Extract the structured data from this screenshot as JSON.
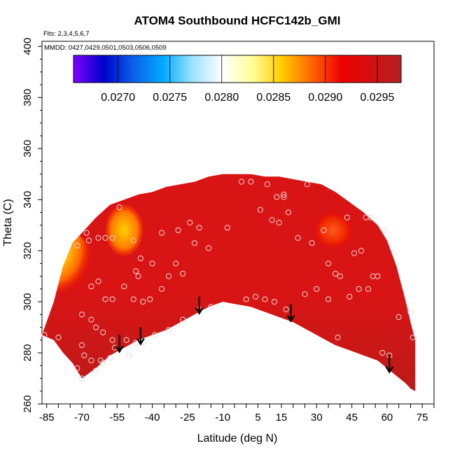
{
  "chart_data": {
    "type": "heatmap",
    "title": "ATOM4 Southbound HCFC142b_GMI",
    "flights_note": "Flts: 2,3,4,5,6,7",
    "dates_note": "MMDD: 0427,0429,0501,0503,0506,0509",
    "xlabel": "Latitude (deg N)",
    "ylabel": "Theta (C)",
    "xlim": [
      -87,
      80
    ],
    "ylim": [
      260,
      402
    ],
    "x_ticks": [
      -85,
      -70,
      -55,
      -40,
      -25,
      -10,
      5,
      15,
      30,
      45,
      60,
      75
    ],
    "y_ticks": [
      260,
      280,
      300,
      320,
      340,
      360,
      380,
      400
    ],
    "colorbar": {
      "min": 0.02657,
      "max": 0.02973,
      "ticks": [
        0.027,
        0.0275,
        0.028,
        0.0285,
        0.029,
        0.0295
      ],
      "tick_labels": [
        "0.0270",
        "0.0275",
        "0.0280",
        "0.0285",
        "0.0290",
        "0.0295"
      ],
      "colors": [
        "#7f00ff",
        "#0000cc",
        "#0b5fe8",
        "#00aaff",
        "#9ee3ff",
        "#ffffff",
        "#ffff99",
        "#ffcc00",
        "#ff6600",
        "#ee0000",
        "#d40f0f",
        "#b22222"
      ]
    },
    "envelope": {
      "lat": [
        -87,
        -82,
        -78,
        -74,
        -70,
        -64,
        -58,
        -52,
        -46,
        -40,
        -34,
        -28,
        -22,
        -16,
        -10,
        -4,
        2,
        8,
        14,
        20,
        26,
        32,
        38,
        44,
        50,
        56,
        60,
        64,
        68,
        70,
        72
      ],
      "theta_top": [
        287,
        300,
        314,
        323,
        327,
        333,
        338,
        340,
        342,
        343,
        345,
        346,
        347,
        349,
        350,
        350,
        350,
        349,
        349,
        348,
        347,
        346,
        343,
        339,
        335,
        330,
        324,
        314,
        300,
        292,
        285
      ],
      "theta_bottom": [
        287,
        285,
        280,
        276,
        270,
        274,
        279,
        282,
        285,
        287,
        289,
        292,
        295,
        298,
        300,
        299,
        298,
        296,
        294,
        292,
        289,
        286,
        283,
        281,
        279,
        277,
        274,
        271,
        268,
        266,
        265
      ]
    },
    "field_values": {
      "background": 0.0294,
      "low_theta_shade": 0.0297,
      "south_high_plume": 0.0285,
      "north_high_blob": 0.0291
    },
    "sample_points": [
      [
        -72,
        322
      ],
      [
        -68,
        327
      ],
      [
        -67,
        324
      ],
      [
        -63,
        325
      ],
      [
        -60,
        325
      ],
      [
        -57,
        325
      ],
      [
        -54,
        337
      ],
      [
        -48,
        324
      ],
      [
        -45,
        317
      ],
      [
        -47,
        312
      ],
      [
        -46,
        310
      ],
      [
        -40,
        315
      ],
      [
        -36,
        327
      ],
      [
        -33,
        310
      ],
      [
        -30,
        315
      ],
      [
        -29,
        328
      ],
      [
        -27,
        311
      ],
      [
        -24,
        331
      ],
      [
        -22,
        323
      ],
      [
        -20,
        329
      ],
      [
        -16,
        321
      ],
      [
        -8,
        329
      ],
      [
        -2,
        347
      ],
      [
        2,
        347
      ],
      [
        6,
        336
      ],
      [
        9,
        346
      ],
      [
        11,
        332
      ],
      [
        13,
        341
      ],
      [
        14,
        331
      ],
      [
        16,
        341
      ],
      [
        16,
        342
      ],
      [
        18,
        335
      ],
      [
        22,
        325
      ],
      [
        26,
        346
      ],
      [
        28,
        323
      ],
      [
        33,
        328
      ],
      [
        35,
        315
      ],
      [
        38,
        311
      ],
      [
        40,
        310
      ],
      [
        43,
        333
      ],
      [
        46,
        319
      ],
      [
        49,
        320
      ],
      [
        51,
        333
      ],
      [
        53,
        333
      ],
      [
        56,
        310
      ],
      [
        59,
        328
      ],
      [
        -66,
        306
      ],
      [
        -63,
        308
      ],
      [
        -60,
        301
      ],
      [
        -57,
        301
      ],
      [
        -52,
        306
      ],
      [
        -48,
        301
      ],
      [
        -44,
        300
      ],
      [
        -41,
        301
      ],
      [
        -36,
        305
      ],
      [
        -70,
        295
      ],
      [
        -66,
        293
      ],
      [
        -64,
        290
      ],
      [
        -61,
        288
      ],
      [
        -57,
        285
      ],
      [
        -51,
        285
      ],
      [
        -47,
        284
      ],
      [
        -44,
        284
      ],
      [
        -39,
        287
      ],
      [
        -33,
        289
      ],
      [
        -27,
        293
      ],
      [
        -20,
        297
      ],
      [
        -15,
        298
      ],
      [
        0,
        301
      ],
      [
        4,
        302
      ],
      [
        8,
        301
      ],
      [
        12,
        300
      ],
      [
        17,
        297
      ],
      [
        25,
        303
      ],
      [
        30,
        305
      ],
      [
        35,
        301
      ],
      [
        39,
        286
      ],
      [
        44,
        302
      ],
      [
        48,
        305
      ],
      [
        52,
        305
      ],
      [
        54,
        310
      ],
      [
        58,
        280
      ],
      [
        61,
        279
      ],
      [
        65,
        294
      ],
      [
        70,
        296
      ],
      [
        71,
        286
      ],
      [
        -70,
        283
      ],
      [
        -69,
        279
      ],
      [
        -66,
        277
      ],
      [
        -62,
        277
      ],
      [
        -72,
        274
      ],
      [
        -70,
        270
      ],
      [
        -86,
        287
      ],
      [
        -80,
        286
      ],
      [
        -56,
        282
      ],
      [
        -50,
        279
      ],
      [
        -64,
        273
      ],
      [
        -61,
        276
      ],
      [
        -58,
        278
      ]
    ],
    "arrows": [
      {
        "lat": -54,
        "theta": 287
      },
      {
        "lat": -45,
        "theta": 290
      },
      {
        "lat": -20,
        "theta": 302
      },
      {
        "lat": 19,
        "theta": 299
      },
      {
        "lat": 61,
        "theta": 279
      }
    ]
  }
}
